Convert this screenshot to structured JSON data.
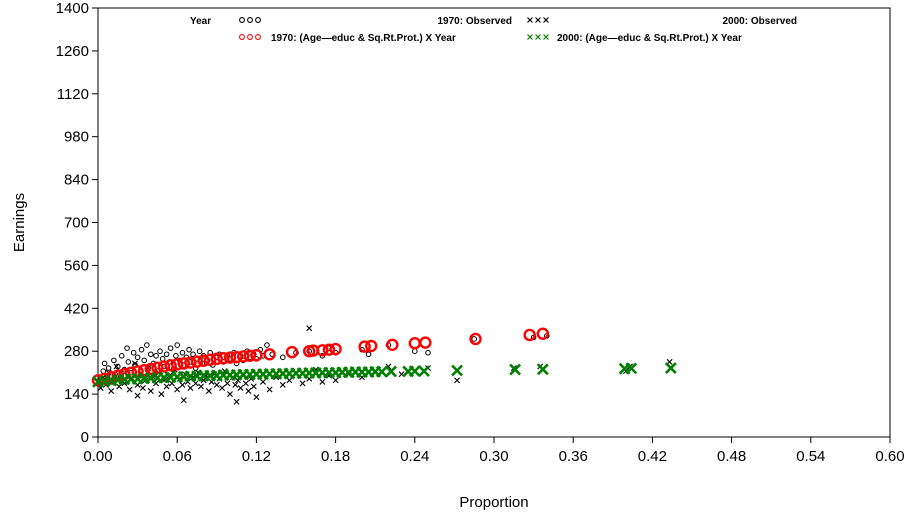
{
  "chart_data": {
    "type": "scatter",
    "title": "",
    "xlabel": "Proportion",
    "ylabel": "Earnings",
    "xlim": [
      0.0,
      0.6
    ],
    "ylim": [
      0,
      1400
    ],
    "xticks": [
      "0.00",
      "0.06",
      "0.12",
      "0.18",
      "0.24",
      "0.30",
      "0.36",
      "0.42",
      "0.48",
      "0.54",
      "0.60"
    ],
    "yticks": [
      "0",
      "140",
      "280",
      "420",
      "560",
      "700",
      "840",
      "980",
      "1120",
      "1260",
      "1400"
    ],
    "grid": false,
    "legend_placement": "top",
    "legend": {
      "group_label": "Year",
      "entries": [
        {
          "label": "1970: Observed",
          "symbol": "o",
          "color": "#000000"
        },
        {
          "label": "2000: Observed",
          "symbol": "x",
          "color": "#000000"
        },
        {
          "label": "1970: (Age—educ & Sq.Rt.Prot.) X Year",
          "symbol": "o",
          "color": "#ff0000"
        },
        {
          "label": "2000: (Age—educ & Sq.Rt.Prot.) X Year",
          "symbol": "x",
          "color": "#008000"
        }
      ]
    },
    "series": [
      {
        "name": "1970: Observed",
        "marker": "circle-small",
        "color": "#000000",
        "points": [
          [
            0.002,
            185
          ],
          [
            0.004,
            215
          ],
          [
            0.005,
            240
          ],
          [
            0.007,
            200
          ],
          [
            0.008,
            225
          ],
          [
            0.01,
            180
          ],
          [
            0.012,
            250
          ],
          [
            0.013,
            205
          ],
          [
            0.015,
            230
          ],
          [
            0.017,
            195
          ],
          [
            0.018,
            265
          ],
          [
            0.02,
            220
          ],
          [
            0.022,
            290
          ],
          [
            0.023,
            245
          ],
          [
            0.025,
            210
          ],
          [
            0.027,
            275
          ],
          [
            0.028,
            235
          ],
          [
            0.03,
            260
          ],
          [
            0.032,
            200
          ],
          [
            0.033,
            285
          ],
          [
            0.035,
            250
          ],
          [
            0.037,
            300
          ],
          [
            0.038,
            225
          ],
          [
            0.04,
            270
          ],
          [
            0.042,
            240
          ],
          [
            0.044,
            265
          ],
          [
            0.045,
            215
          ],
          [
            0.047,
            280
          ],
          [
            0.049,
            255
          ],
          [
            0.05,
            230
          ],
          [
            0.052,
            270
          ],
          [
            0.054,
            245
          ],
          [
            0.055,
            290
          ],
          [
            0.057,
            220
          ],
          [
            0.059,
            265
          ],
          [
            0.06,
            300
          ],
          [
            0.062,
            250
          ],
          [
            0.064,
            275
          ],
          [
            0.065,
            235
          ],
          [
            0.067,
            260
          ],
          [
            0.069,
            285
          ],
          [
            0.07,
            245
          ],
          [
            0.072,
            270
          ],
          [
            0.074,
            225
          ],
          [
            0.075,
            255
          ],
          [
            0.077,
            280
          ],
          [
            0.079,
            240
          ],
          [
            0.08,
            265
          ],
          [
            0.083,
            250
          ],
          [
            0.085,
            275
          ],
          [
            0.087,
            235
          ],
          [
            0.09,
            260
          ],
          [
            0.092,
            270
          ],
          [
            0.095,
            245
          ],
          [
            0.098,
            265
          ],
          [
            0.1,
            255
          ],
          [
            0.103,
            275
          ],
          [
            0.105,
            240
          ],
          [
            0.108,
            265
          ],
          [
            0.11,
            250
          ],
          [
            0.113,
            280
          ],
          [
            0.115,
            260
          ],
          [
            0.118,
            270
          ],
          [
            0.12,
            255
          ],
          [
            0.123,
            285
          ],
          [
            0.125,
            265
          ],
          [
            0.128,
            300
          ],
          [
            0.132,
            270
          ],
          [
            0.14,
            260
          ],
          [
            0.15,
            275
          ],
          [
            0.16,
            280
          ],
          [
            0.17,
            265
          ],
          [
            0.175,
            290
          ],
          [
            0.18,
            275
          ],
          [
            0.2,
            285
          ],
          [
            0.205,
            270
          ],
          [
            0.22,
            300
          ],
          [
            0.24,
            280
          ],
          [
            0.25,
            275
          ],
          [
            0.285,
            320
          ],
          [
            0.33,
            325
          ],
          [
            0.34,
            330
          ]
        ]
      },
      {
        "name": "2000: Observed",
        "marker": "x-small",
        "color": "#000000",
        "points": [
          [
            0.002,
            160
          ],
          [
            0.004,
            195
          ],
          [
            0.006,
            170
          ],
          [
            0.008,
            210
          ],
          [
            0.01,
            150
          ],
          [
            0.012,
            185
          ],
          [
            0.014,
            230
          ],
          [
            0.016,
            165
          ],
          [
            0.018,
            200
          ],
          [
            0.02,
            175
          ],
          [
            0.022,
            215
          ],
          [
            0.024,
            155
          ],
          [
            0.026,
            190
          ],
          [
            0.028,
            240
          ],
          [
            0.03,
            170
          ],
          [
            0.032,
            205
          ],
          [
            0.034,
            160
          ],
          [
            0.036,
            185
          ],
          [
            0.038,
            225
          ],
          [
            0.04,
            150
          ],
          [
            0.042,
            195
          ],
          [
            0.044,
            175
          ],
          [
            0.046,
            210
          ],
          [
            0.048,
            140
          ],
          [
            0.05,
            185
          ],
          [
            0.052,
            165
          ],
          [
            0.054,
            200
          ],
          [
            0.056,
            175
          ],
          [
            0.058,
            220
          ],
          [
            0.06,
            155
          ],
          [
            0.062,
            190
          ],
          [
            0.064,
            170
          ],
          [
            0.066,
            205
          ],
          [
            0.068,
            180
          ],
          [
            0.07,
            160
          ],
          [
            0.072,
            195
          ],
          [
            0.074,
            175
          ],
          [
            0.076,
            210
          ],
          [
            0.078,
            165
          ],
          [
            0.08,
            185
          ],
          [
            0.082,
            200
          ],
          [
            0.084,
            150
          ],
          [
            0.086,
            180
          ],
          [
            0.088,
            205
          ],
          [
            0.09,
            170
          ],
          [
            0.092,
            190
          ],
          [
            0.094,
            160
          ],
          [
            0.096,
            215
          ],
          [
            0.098,
            175
          ],
          [
            0.1,
            140
          ],
          [
            0.102,
            195
          ],
          [
            0.104,
            170
          ],
          [
            0.106,
            185
          ],
          [
            0.108,
            160
          ],
          [
            0.11,
            200
          ],
          [
            0.112,
            175
          ],
          [
            0.114,
            150
          ],
          [
            0.116,
            190
          ],
          [
            0.118,
            165
          ],
          [
            0.12,
            205
          ],
          [
            0.125,
            180
          ],
          [
            0.13,
            155
          ],
          [
            0.135,
            195
          ],
          [
            0.14,
            170
          ],
          [
            0.145,
            185
          ],
          [
            0.15,
            210
          ],
          [
            0.155,
            175
          ],
          [
            0.16,
            190
          ],
          [
            0.165,
            220
          ],
          [
            0.17,
            180
          ],
          [
            0.175,
            200
          ],
          [
            0.18,
            185
          ],
          [
            0.19,
            205
          ],
          [
            0.2,
            195
          ],
          [
            0.21,
            215
          ],
          [
            0.22,
            230
          ],
          [
            0.23,
            205
          ],
          [
            0.24,
            215
          ],
          [
            0.25,
            225
          ],
          [
            0.272,
            185
          ],
          [
            0.315,
            225
          ],
          [
            0.335,
            230
          ],
          [
            0.4,
            215
          ],
          [
            0.403,
            230
          ],
          [
            0.433,
            245
          ],
          [
            0.065,
            120
          ],
          [
            0.105,
            115
          ],
          [
            0.16,
            355
          ],
          [
            0.12,
            130
          ],
          [
            0.03,
            135
          ]
        ]
      },
      {
        "name": "1970: (Age—educ & Sq.Rt.Prot.) X Year",
        "marker": "circle-large",
        "color": "#ff0000",
        "points": [
          [
            0.0,
            185
          ],
          [
            0.005,
            190
          ],
          [
            0.01,
            195
          ],
          [
            0.015,
            200
          ],
          [
            0.02,
            205
          ],
          [
            0.025,
            210
          ],
          [
            0.03,
            214
          ],
          [
            0.035,
            218
          ],
          [
            0.04,
            222
          ],
          [
            0.045,
            226
          ],
          [
            0.05,
            230
          ],
          [
            0.055,
            234
          ],
          [
            0.06,
            237
          ],
          [
            0.065,
            240
          ],
          [
            0.07,
            243
          ],
          [
            0.075,
            246
          ],
          [
            0.08,
            249
          ],
          [
            0.085,
            252
          ],
          [
            0.09,
            255
          ],
          [
            0.095,
            257
          ],
          [
            0.1,
            259
          ],
          [
            0.105,
            261
          ],
          [
            0.11,
            263
          ],
          [
            0.115,
            265
          ],
          [
            0.12,
            267
          ],
          [
            0.13,
            270
          ],
          [
            0.147,
            277
          ],
          [
            0.16,
            280
          ],
          [
            0.163,
            282
          ],
          [
            0.17,
            283
          ],
          [
            0.175,
            285
          ],
          [
            0.18,
            287
          ],
          [
            0.202,
            295
          ],
          [
            0.207,
            297
          ],
          [
            0.223,
            301
          ],
          [
            0.24,
            306
          ],
          [
            0.248,
            308
          ],
          [
            0.286,
            320
          ],
          [
            0.327,
            333
          ],
          [
            0.337,
            337
          ]
        ]
      },
      {
        "name": "2000: (Age—educ & Sq.Rt.Prot.) X Year",
        "marker": "x-large",
        "color": "#008000",
        "points": [
          [
            0.0,
            180
          ],
          [
            0.005,
            182
          ],
          [
            0.01,
            184
          ],
          [
            0.015,
            186
          ],
          [
            0.02,
            188
          ],
          [
            0.025,
            189
          ],
          [
            0.03,
            190
          ],
          [
            0.035,
            191
          ],
          [
            0.04,
            192
          ],
          [
            0.045,
            193
          ],
          [
            0.05,
            194
          ],
          [
            0.055,
            195
          ],
          [
            0.06,
            196
          ],
          [
            0.065,
            197
          ],
          [
            0.07,
            198
          ],
          [
            0.075,
            199
          ],
          [
            0.08,
            200
          ],
          [
            0.085,
            200
          ],
          [
            0.09,
            201
          ],
          [
            0.095,
            202
          ],
          [
            0.1,
            202
          ],
          [
            0.105,
            203
          ],
          [
            0.11,
            204
          ],
          [
            0.115,
            204
          ],
          [
            0.12,
            205
          ],
          [
            0.125,
            205
          ],
          [
            0.13,
            206
          ],
          [
            0.135,
            206
          ],
          [
            0.14,
            207
          ],
          [
            0.145,
            207
          ],
          [
            0.15,
            208
          ],
          [
            0.155,
            208
          ],
          [
            0.16,
            209
          ],
          [
            0.165,
            209
          ],
          [
            0.17,
            210
          ],
          [
            0.175,
            210
          ],
          [
            0.18,
            210
          ],
          [
            0.185,
            211
          ],
          [
            0.19,
            211
          ],
          [
            0.195,
            212
          ],
          [
            0.2,
            212
          ],
          [
            0.205,
            212
          ],
          [
            0.21,
            213
          ],
          [
            0.215,
            213
          ],
          [
            0.222,
            214
          ],
          [
            0.235,
            214
          ],
          [
            0.24,
            215
          ],
          [
            0.247,
            215
          ],
          [
            0.272,
            217
          ],
          [
            0.316,
            220
          ],
          [
            0.337,
            221
          ],
          [
            0.399,
            223
          ],
          [
            0.404,
            224
          ],
          [
            0.434,
            225
          ]
        ]
      }
    ]
  }
}
